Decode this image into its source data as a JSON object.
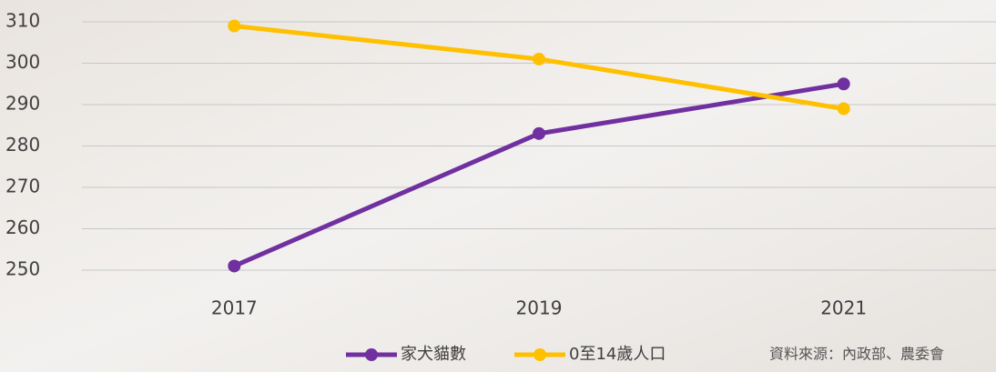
{
  "chart_data": {
    "type": "line",
    "categories": [
      "2017",
      "2019",
      "2021"
    ],
    "series": [
      {
        "name": "家犬貓數",
        "color": "#7030a0",
        "values": [
          251,
          283,
          295
        ]
      },
      {
        "name": "0至14歲人口",
        "color": "#ffc000",
        "values": [
          309,
          301,
          289
        ]
      }
    ],
    "ylim": [
      250,
      310
    ],
    "yticks": [
      250,
      260,
      270,
      280,
      290,
      300,
      310
    ],
    "grid": true,
    "source": "資料來源：內政部、農委會"
  }
}
